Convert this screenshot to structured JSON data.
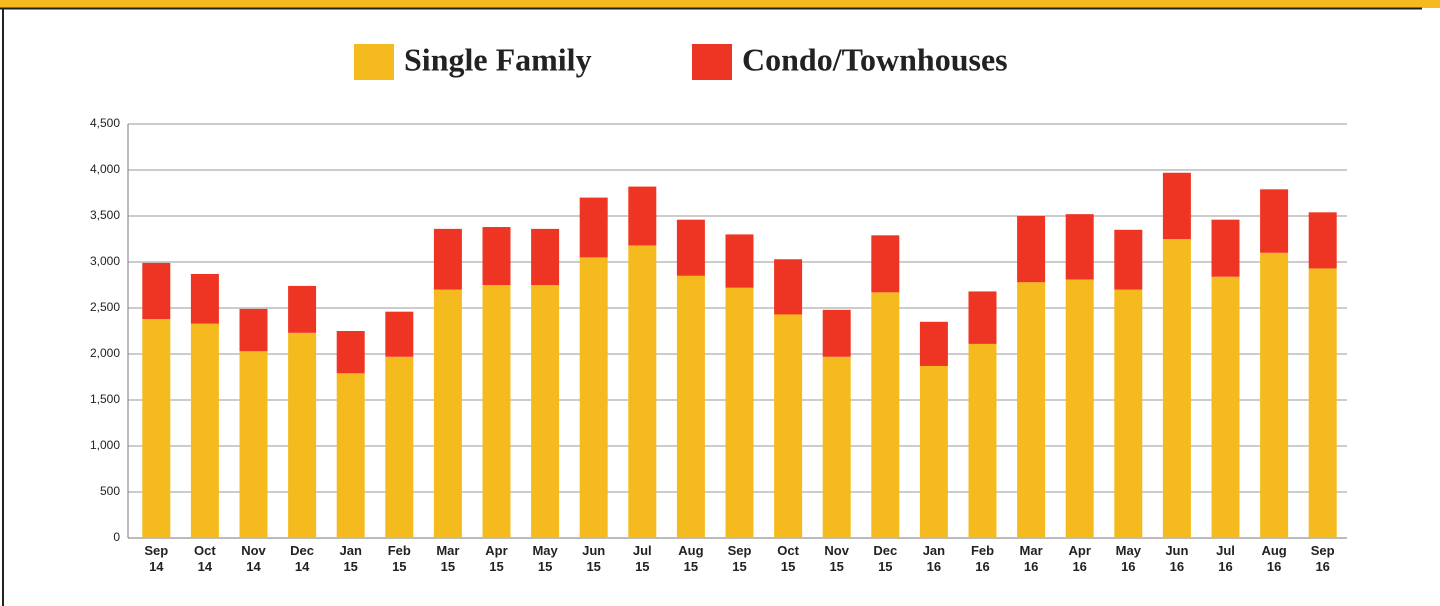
{
  "chart_data": {
    "type": "stacked-bar",
    "categories": [
      "Sep 14",
      "Oct 14",
      "Nov 14",
      "Dec 14",
      "Jan 15",
      "Feb 15",
      "Mar 15",
      "Apr 15",
      "May 15",
      "Jun 15",
      "Jul 15",
      "Aug 15",
      "Sep 15",
      "Oct 15",
      "Nov 15",
      "Dec 15",
      "Jan 16",
      "Feb 16",
      "Mar 16",
      "Apr 16",
      "May 16",
      "Jun 16",
      "Jul 16",
      "Aug 16",
      "Sep 16"
    ],
    "series": [
      {
        "name": "Single Family",
        "color": "#f5bb1e",
        "values": [
          2380,
          2330,
          2030,
          2230,
          1790,
          1970,
          2700,
          2750,
          2750,
          3050,
          3180,
          2850,
          2720,
          2430,
          1970,
          2670,
          1870,
          2110,
          2780,
          2810,
          2700,
          3250,
          2840,
          3100,
          2930
        ]
      },
      {
        "name": "Condo/Townhouses",
        "color": "#ee3524",
        "values": [
          610,
          540,
          460,
          510,
          460,
          490,
          660,
          630,
          610,
          650,
          640,
          610,
          580,
          600,
          510,
          620,
          480,
          570,
          720,
          710,
          650,
          720,
          620,
          690,
          610
        ]
      }
    ],
    "ylim": [
      0,
      4500
    ],
    "yticks": [
      0,
      500,
      {
        "value": 1000,
        "label": "1,000"
      },
      {
        "value": 1500,
        "label": "1,500"
      },
      {
        "value": 2000,
        "label": "2,000"
      },
      {
        "value": 2500,
        "label": "2,500"
      },
      {
        "value": 3000,
        "label": "3,000"
      },
      {
        "value": 3500,
        "label": "3,500"
      },
      {
        "value": 4000,
        "label": "4,000"
      },
      {
        "value": 4500,
        "label": "4,500"
      }
    ],
    "grid": true,
    "legend": "top"
  }
}
